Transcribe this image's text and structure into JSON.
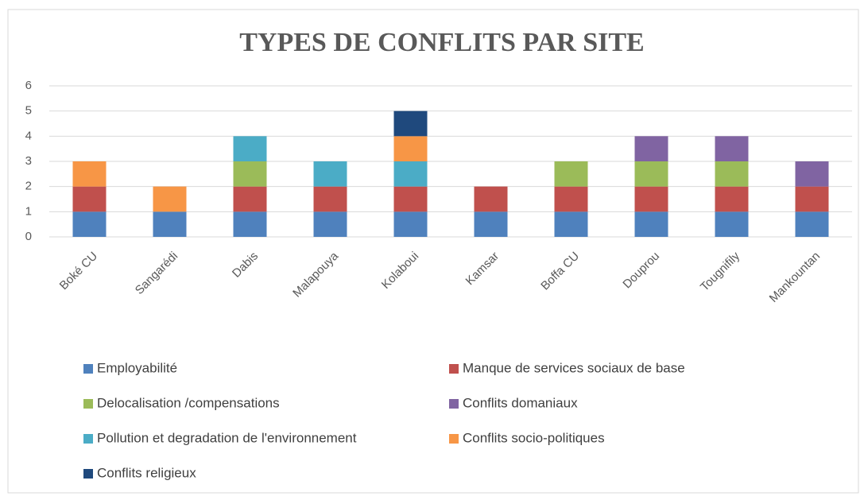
{
  "chart_data": {
    "type": "stacked_bar",
    "title": "TYPES DE CONFLITS PAR SITE",
    "categories": [
      "Boké CU",
      "Sangarédi",
      "Dabis",
      "Malapouya",
      "Kolaboui",
      "Kamsar",
      "Boffa CU",
      "Douprou",
      "Tougnifily",
      "Mankountan"
    ],
    "series": [
      {
        "name": "Employabilité",
        "color": "#4f81bd",
        "values": [
          1,
          1,
          1,
          1,
          1,
          1,
          1,
          1,
          1,
          1
        ]
      },
      {
        "name": "Manque de services sociaux de base",
        "color": "#c0504d",
        "values": [
          1,
          0,
          1,
          1,
          1,
          1,
          1,
          1,
          1,
          1
        ]
      },
      {
        "name": "Delocalisation  /compensations",
        "color": "#9bbb59",
        "values": [
          0,
          0,
          1,
          0,
          0,
          0,
          1,
          1,
          1,
          0
        ]
      },
      {
        "name": "Conflits domaniaux",
        "color": "#8064a2",
        "values": [
          0,
          0,
          0,
          0,
          0,
          0,
          0,
          1,
          1,
          1
        ]
      },
      {
        "name": "Pollution et degradation de l'environnement",
        "color": "#4bacc6",
        "values": [
          0,
          0,
          1,
          1,
          1,
          0,
          0,
          0,
          0,
          0
        ]
      },
      {
        "name": "Conflits socio-politiques",
        "color": "#f79646",
        "values": [
          1,
          1,
          0,
          0,
          1,
          0,
          0,
          0,
          0,
          0
        ]
      },
      {
        "name": "Conflits religieux",
        "color": "#1f497d",
        "values": [
          0,
          0,
          0,
          0,
          1,
          0,
          0,
          0,
          0,
          0
        ]
      }
    ],
    "ylim": [
      0,
      6
    ],
    "yticks": [
      0,
      1,
      2,
      3,
      4,
      5,
      6
    ],
    "grid": true
  }
}
